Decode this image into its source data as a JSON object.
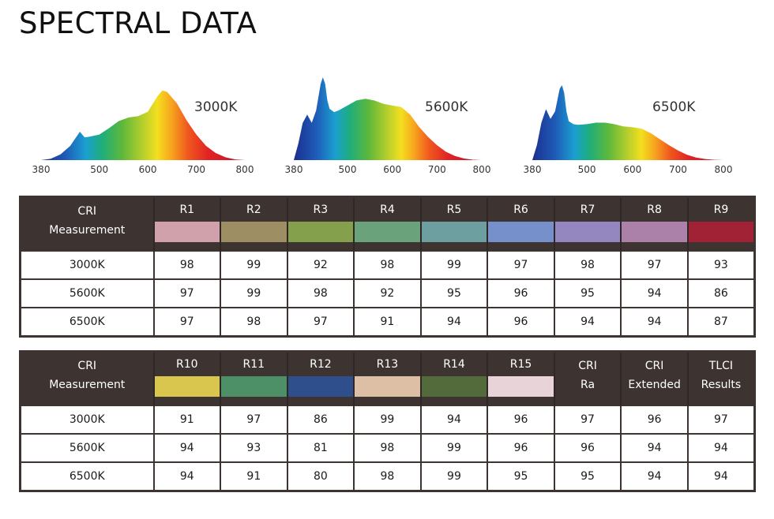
{
  "page_title": "SPECTRAL DATA",
  "chart_data": [
    {
      "type": "area",
      "label": "3000K",
      "x_ticks": [
        "380",
        "500",
        "600",
        "700",
        "800"
      ],
      "xlim": [
        380,
        800
      ],
      "x": [
        380,
        400,
        420,
        440,
        450,
        460,
        470,
        480,
        500,
        520,
        540,
        560,
        580,
        600,
        620,
        630,
        640,
        660,
        680,
        700,
        720,
        740,
        760,
        780,
        800
      ],
      "y": [
        0.0,
        0.02,
        0.08,
        0.2,
        0.3,
        0.4,
        0.32,
        0.33,
        0.36,
        0.45,
        0.55,
        0.6,
        0.62,
        0.68,
        0.9,
        0.98,
        0.96,
        0.8,
        0.56,
        0.36,
        0.2,
        0.1,
        0.04,
        0.01,
        0.0
      ]
    },
    {
      "type": "area",
      "label": "5600K",
      "x_ticks": [
        "380",
        "500",
        "600",
        "700",
        "800"
      ],
      "xlim": [
        380,
        800
      ],
      "x": [
        380,
        390,
        400,
        410,
        420,
        430,
        440,
        445,
        450,
        455,
        460,
        470,
        480,
        500,
        520,
        540,
        560,
        580,
        600,
        620,
        640,
        660,
        680,
        700,
        720,
        740,
        760,
        780,
        800
      ],
      "y": [
        0.0,
        0.2,
        0.45,
        0.55,
        0.45,
        0.6,
        0.92,
        1.0,
        0.92,
        0.72,
        0.62,
        0.58,
        0.6,
        0.66,
        0.72,
        0.74,
        0.72,
        0.68,
        0.66,
        0.64,
        0.55,
        0.4,
        0.28,
        0.18,
        0.1,
        0.05,
        0.02,
        0.005,
        0.0
      ]
    },
    {
      "type": "area",
      "label": "6500K",
      "x_ticks": [
        "380",
        "500",
        "600",
        "700",
        "800"
      ],
      "xlim": [
        380,
        800
      ],
      "x": [
        380,
        390,
        400,
        410,
        420,
        430,
        440,
        445,
        450,
        455,
        460,
        470,
        480,
        500,
        520,
        540,
        560,
        580,
        600,
        620,
        640,
        660,
        680,
        700,
        720,
        740,
        760,
        780,
        800
      ],
      "y": [
        0.0,
        0.2,
        0.5,
        0.68,
        0.55,
        0.65,
        0.95,
        1.0,
        0.9,
        0.65,
        0.52,
        0.48,
        0.47,
        0.48,
        0.5,
        0.5,
        0.48,
        0.45,
        0.44,
        0.42,
        0.36,
        0.28,
        0.2,
        0.13,
        0.07,
        0.035,
        0.015,
        0.004,
        0.0
      ]
    }
  ],
  "table1": {
    "corner": [
      "CRI",
      "Measurement"
    ],
    "headers": [
      "R1",
      "R2",
      "R3",
      "R4",
      "R5",
      "R6",
      "R7",
      "R8",
      "R9"
    ],
    "swatches": [
      "#d0a0ab",
      "#9d8f63",
      "#84a04c",
      "#6aa27b",
      "#6e9fa0",
      "#7590cb",
      "#9487c0",
      "#ab80a9",
      "#a02234"
    ],
    "rows": [
      {
        "label": "3000K",
        "values": [
          "98",
          "99",
          "92",
          "98",
          "99",
          "97",
          "98",
          "97",
          "93"
        ]
      },
      {
        "label": "5600K",
        "values": [
          "97",
          "99",
          "98",
          "92",
          "95",
          "96",
          "95",
          "94",
          "86"
        ]
      },
      {
        "label": "6500K",
        "values": [
          "97",
          "98",
          "97",
          "91",
          "94",
          "96",
          "94",
          "94",
          "87"
        ]
      }
    ]
  },
  "table2": {
    "corner": [
      "CRI",
      "Measurement"
    ],
    "headers": [
      "R10",
      "R11",
      "R12",
      "R13",
      "R14",
      "R15"
    ],
    "swatches": [
      "#d8c64f",
      "#4d8f67",
      "#2f4e8c",
      "#dcbfa4",
      "#536b3a",
      "#e7d3d8"
    ],
    "extra_headers": [
      [
        "CRI",
        "Ra"
      ],
      [
        "CRI",
        "Extended"
      ],
      [
        "TLCI",
        "Results"
      ]
    ],
    "rows": [
      {
        "label": "3000K",
        "values": [
          "91",
          "97",
          "86",
          "99",
          "94",
          "96",
          "97",
          "96",
          "97"
        ]
      },
      {
        "label": "5600K",
        "values": [
          "94",
          "93",
          "81",
          "98",
          "99",
          "96",
          "96",
          "94",
          "94"
        ]
      },
      {
        "label": "6500K",
        "values": [
          "94",
          "91",
          "80",
          "98",
          "99",
          "95",
          "95",
          "94",
          "94"
        ]
      }
    ]
  }
}
